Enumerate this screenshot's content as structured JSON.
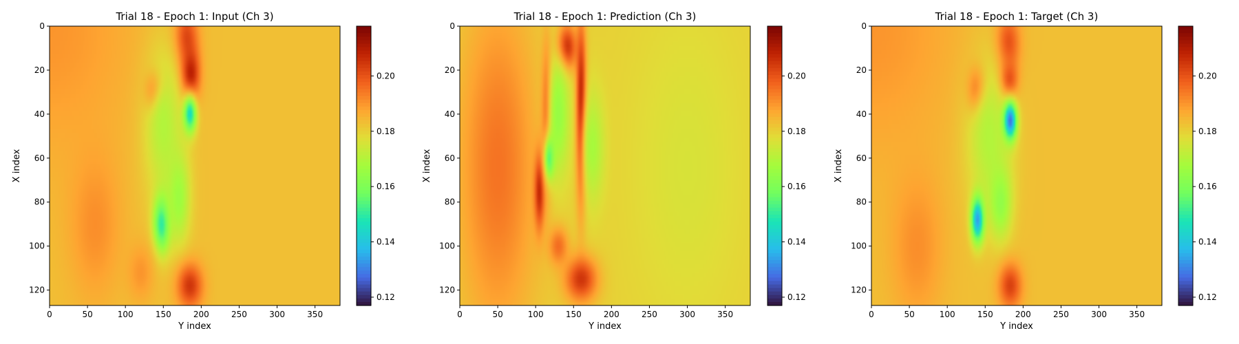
{
  "figure": {
    "colormap": "turbo"
  },
  "chart_data": [
    {
      "type": "heatmap",
      "title": "Trial 18 - Epoch 1: Input (Ch 3)",
      "xlabel": "Y index",
      "ylabel": "X index",
      "xlim": [
        0,
        383
      ],
      "ylim": [
        127,
        0
      ],
      "xticks": [
        0,
        50,
        100,
        150,
        200,
        250,
        300,
        350
      ],
      "yticks": [
        0,
        20,
        40,
        60,
        80,
        100,
        120
      ],
      "colorbar": {
        "vmin": 0.117,
        "vmax": 0.218,
        "ticks": [
          0.12,
          0.14,
          0.16,
          0.18,
          0.2
        ],
        "tick_labels": [
          "0.12",
          "0.14",
          "0.16",
          "0.18",
          "0.20"
        ]
      },
      "background_value": 0.183,
      "features": [
        {
          "x": 0,
          "y": 0,
          "rx": 130,
          "ry": 70,
          "v": 0.19
        },
        {
          "x": 60,
          "y": 90,
          "rx": 40,
          "ry": 40,
          "v": 0.191
        },
        {
          "x": 180,
          "y": 5,
          "rx": 18,
          "ry": 15,
          "v": 0.203
        },
        {
          "x": 185,
          "y": 22,
          "rx": 15,
          "ry": 14,
          "v": 0.213
        },
        {
          "x": 140,
          "y": 30,
          "rx": 14,
          "ry": 10,
          "v": 0.213
        },
        {
          "x": 150,
          "y": 45,
          "rx": 30,
          "ry": 40,
          "v": 0.17
        },
        {
          "x": 185,
          "y": 40,
          "rx": 10,
          "ry": 10,
          "v": 0.145
        },
        {
          "x": 148,
          "y": 90,
          "rx": 13,
          "ry": 15,
          "v": 0.148
        },
        {
          "x": 170,
          "y": 78,
          "rx": 18,
          "ry": 25,
          "v": 0.166
        },
        {
          "x": 185,
          "y": 118,
          "rx": 20,
          "ry": 12,
          "v": 0.205
        },
        {
          "x": 120,
          "y": 112,
          "rx": 20,
          "ry": 15,
          "v": 0.19
        }
      ]
    },
    {
      "type": "heatmap",
      "title": "Trial 18 - Epoch 1: Prediction (Ch 3)",
      "xlabel": "Y index",
      "ylabel": "X index",
      "xlim": [
        0,
        383
      ],
      "ylim": [
        127,
        0
      ],
      "xticks": [
        0,
        50,
        100,
        150,
        200,
        250,
        300,
        350
      ],
      "yticks": [
        0,
        20,
        40,
        60,
        80,
        100,
        120
      ],
      "colorbar": {
        "vmin": 0.117,
        "vmax": 0.218,
        "ticks": [
          0.12,
          0.14,
          0.16,
          0.18,
          0.2
        ],
        "tick_labels": [
          "0.12",
          "0.14",
          "0.16",
          "0.18",
          "0.20"
        ]
      },
      "background_value": 0.18,
      "features": [
        {
          "x": 50,
          "y": 64,
          "rx": 60,
          "ry": 90,
          "v": 0.195
        },
        {
          "x": 300,
          "y": 64,
          "rx": 90,
          "ry": 90,
          "v": 0.176
        },
        {
          "x": 160,
          "y": 40,
          "rx": 8,
          "ry": 45,
          "v": 0.216
        },
        {
          "x": 140,
          "y": 10,
          "rx": 15,
          "ry": 12,
          "v": 0.214
        },
        {
          "x": 115,
          "y": 40,
          "rx": 8,
          "ry": 35,
          "v": 0.205
        },
        {
          "x": 105,
          "y": 75,
          "rx": 8,
          "ry": 20,
          "v": 0.208
        },
        {
          "x": 130,
          "y": 40,
          "rx": 18,
          "ry": 35,
          "v": 0.165
        },
        {
          "x": 175,
          "y": 55,
          "rx": 18,
          "ry": 30,
          "v": 0.168
        },
        {
          "x": 118,
          "y": 60,
          "rx": 8,
          "ry": 12,
          "v": 0.155
        },
        {
          "x": 160,
          "y": 115,
          "rx": 25,
          "ry": 12,
          "v": 0.205
        },
        {
          "x": 130,
          "y": 100,
          "rx": 15,
          "ry": 10,
          "v": 0.196
        }
      ]
    },
    {
      "type": "heatmap",
      "title": "Trial 18 - Epoch 1: Target (Ch 3)",
      "xlabel": "Y index",
      "ylabel": "X index",
      "xlim": [
        0,
        383
      ],
      "ylim": [
        127,
        0
      ],
      "xticks": [
        0,
        50,
        100,
        150,
        200,
        250,
        300,
        350
      ],
      "yticks": [
        0,
        20,
        40,
        60,
        80,
        100,
        120
      ],
      "colorbar": {
        "vmin": 0.117,
        "vmax": 0.218,
        "ticks": [
          0.12,
          0.14,
          0.16,
          0.18,
          0.2
        ],
        "tick_labels": [
          "0.12",
          "0.14",
          "0.16",
          "0.18",
          "0.20"
        ]
      },
      "background_value": 0.183,
      "features": [
        {
          "x": 0,
          "y": 0,
          "rx": 130,
          "ry": 70,
          "v": 0.19
        },
        {
          "x": 60,
          "y": 100,
          "rx": 40,
          "ry": 40,
          "v": 0.191
        },
        {
          "x": 180,
          "y": 8,
          "rx": 18,
          "ry": 15,
          "v": 0.203
        },
        {
          "x": 180,
          "y": 25,
          "rx": 14,
          "ry": 10,
          "v": 0.211
        },
        {
          "x": 140,
          "y": 30,
          "rx": 14,
          "ry": 12,
          "v": 0.21
        },
        {
          "x": 155,
          "y": 50,
          "rx": 35,
          "ry": 40,
          "v": 0.17
        },
        {
          "x": 183,
          "y": 43,
          "rx": 10,
          "ry": 10,
          "v": 0.128
        },
        {
          "x": 140,
          "y": 88,
          "rx": 10,
          "ry": 12,
          "v": 0.133
        },
        {
          "x": 170,
          "y": 80,
          "rx": 18,
          "ry": 20,
          "v": 0.164
        },
        {
          "x": 183,
          "y": 118,
          "rx": 18,
          "ry": 12,
          "v": 0.203
        }
      ]
    }
  ]
}
